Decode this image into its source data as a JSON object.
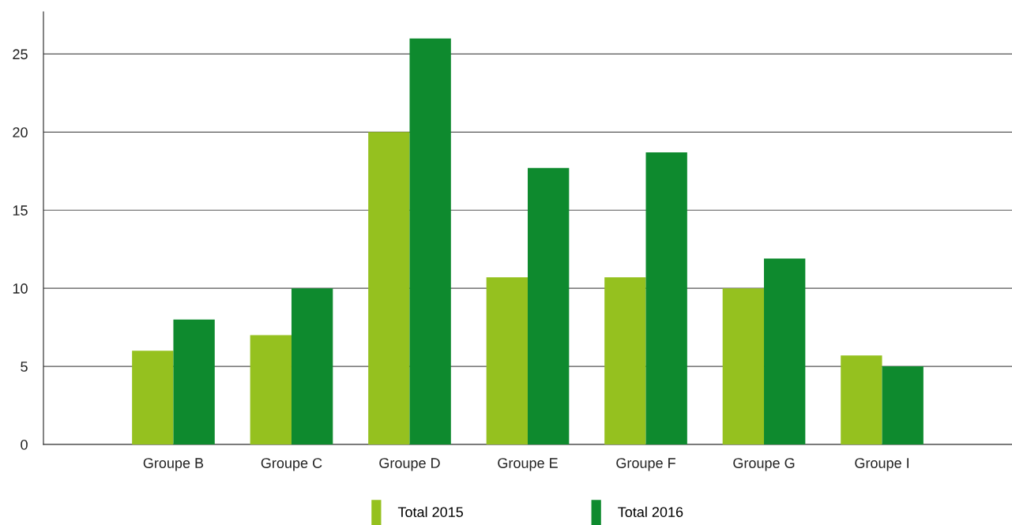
{
  "chart_data": {
    "type": "bar",
    "categories": [
      "Groupe B",
      "Groupe C",
      "Groupe D",
      "Groupe E",
      "Groupe F",
      "Groupe G",
      "Groupe I"
    ],
    "series": [
      {
        "name": "Total 2015",
        "color": "#95c11f",
        "values": [
          6,
          7,
          20,
          10.7,
          10.7,
          10,
          5.7
        ]
      },
      {
        "name": "Total 2016",
        "color": "#0e8a2e",
        "values": [
          8,
          10,
          26,
          17.7,
          18.7,
          11.9,
          5
        ]
      }
    ],
    "ylim": [
      0,
      27.7
    ],
    "yticks": [
      0,
      5,
      10,
      15,
      20,
      25
    ],
    "grid": "y",
    "legend": "bottom"
  }
}
